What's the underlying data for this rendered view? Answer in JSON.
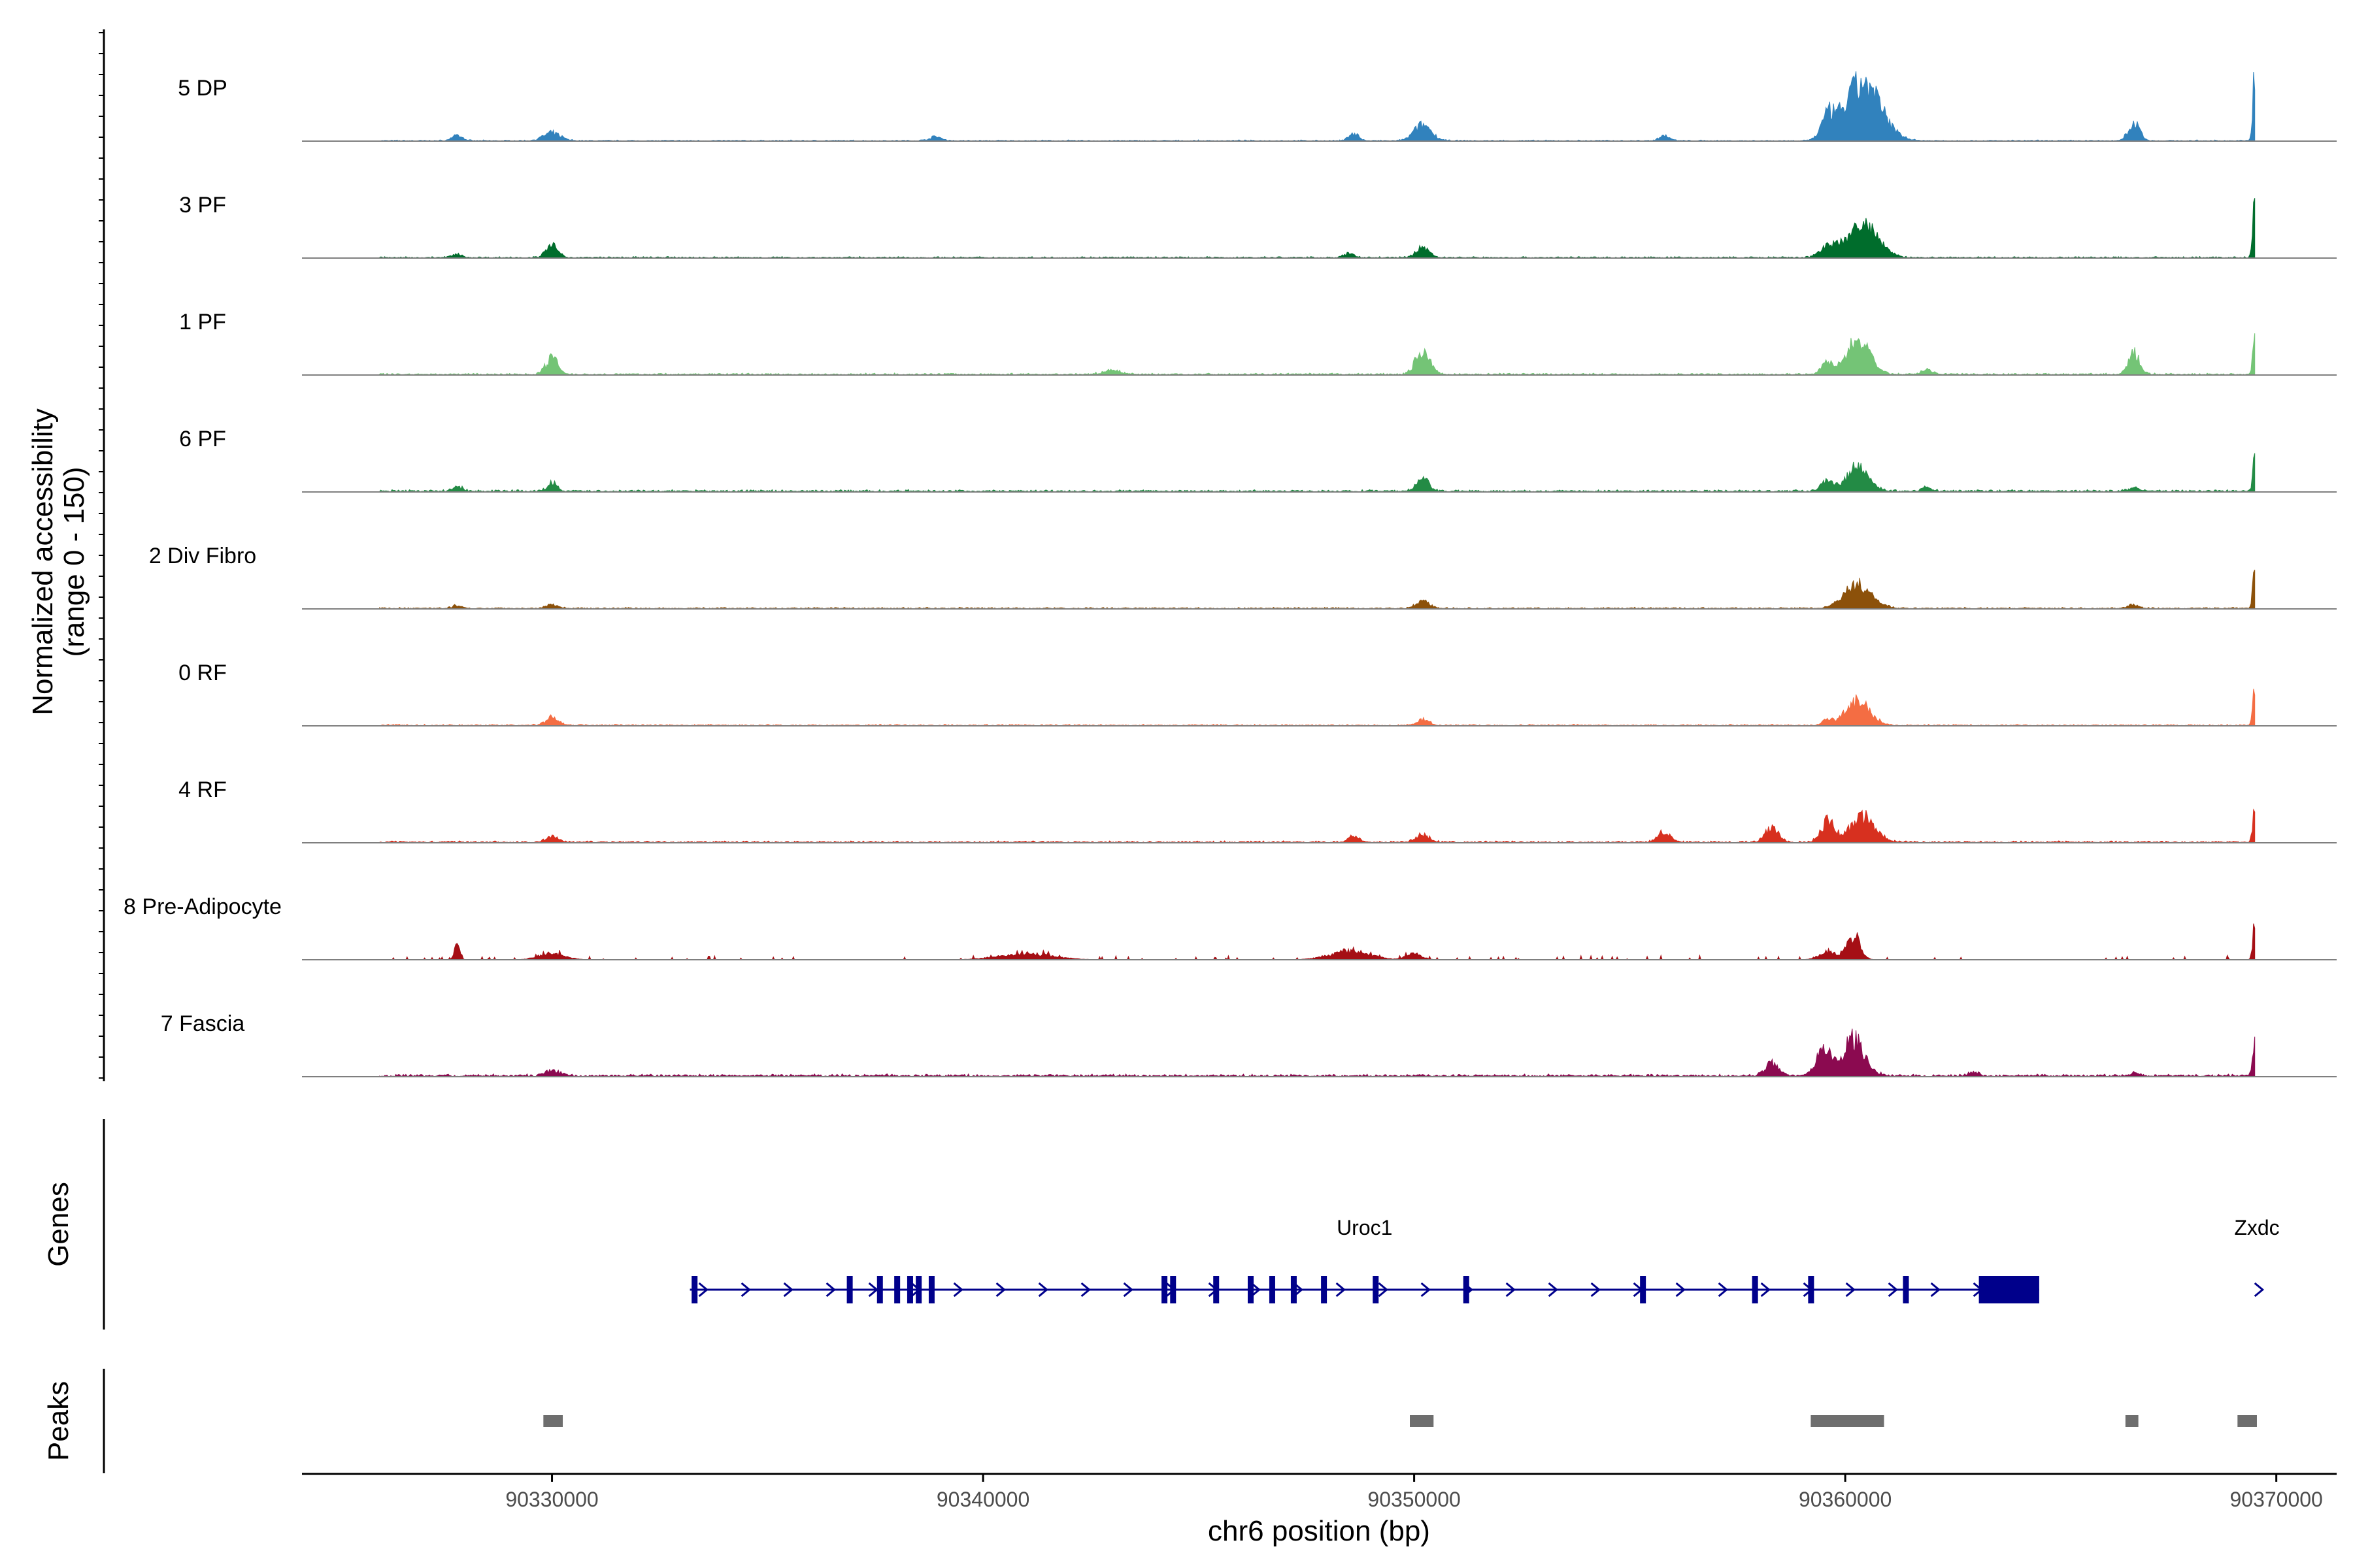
{
  "chart_data": {
    "type": "area",
    "title": "",
    "ylabel_line1": "Normalized accessibility",
    "ylabel_line2": "(range 0 - 150)",
    "y_range": [
      0,
      150
    ],
    "genes_label": "Genes",
    "peaks_label": "Peaks",
    "xlabel": "chr6 position (bp)",
    "xlim": [
      90324200,
      90371400
    ],
    "x_ticks": [
      90330000,
      90340000,
      90350000,
      90360000,
      90370000
    ],
    "x_tick_labels": [
      "90330000",
      "90340000",
      "90350000",
      "90360000",
      "90370000"
    ],
    "tracks": [
      {
        "name": "5 DP",
        "color": "#3182bd",
        "bg": 1.5,
        "peaks": [
          [
            90327800,
            8,
            120
          ],
          [
            90330000,
            12,
            200
          ],
          [
            90338900,
            6,
            150
          ],
          [
            90348600,
            12,
            110
          ],
          [
            90350200,
            25,
            200
          ],
          [
            90355800,
            8,
            120
          ],
          [
            90359600,
            30,
            150
          ],
          [
            90360400,
            90,
            420
          ],
          [
            90366700,
            28,
            130
          ],
          [
            90369500,
            110,
            45
          ]
        ]
      },
      {
        "name": "3 PF",
        "color": "#006d2c",
        "bg": 2.0,
        "peaks": [
          [
            90327800,
            5,
            120
          ],
          [
            90330000,
            20,
            130
          ],
          [
            90348500,
            6,
            120
          ],
          [
            90350200,
            16,
            150
          ],
          [
            90359600,
            16,
            180
          ],
          [
            90360400,
            52,
            350
          ],
          [
            90369500,
            95,
            45
          ]
        ]
      },
      {
        "name": "1 PF",
        "color": "#74c476",
        "bg": 2.5,
        "peaks": [
          [
            90330000,
            26,
            140
          ],
          [
            90343000,
            6,
            200
          ],
          [
            90350200,
            38,
            160
          ],
          [
            90359600,
            18,
            150
          ],
          [
            90360300,
            56,
            260
          ],
          [
            90361900,
            8,
            120
          ],
          [
            90366700,
            32,
            130
          ],
          [
            90369500,
            60,
            45
          ]
        ]
      },
      {
        "name": "6 PF",
        "color": "#238b45",
        "bg": 3.0,
        "peaks": [
          [
            90327800,
            7,
            120
          ],
          [
            90330000,
            12,
            120
          ],
          [
            90350200,
            20,
            140
          ],
          [
            90359600,
            18,
            150
          ],
          [
            90360300,
            40,
            250
          ],
          [
            90361900,
            6,
            120
          ],
          [
            90366700,
            6,
            120
          ],
          [
            90369500,
            58,
            45
          ]
        ]
      },
      {
        "name": "2 Div Fibro",
        "color": "#8c510a",
        "bg": 2.0,
        "peaks": [
          [
            90327800,
            4,
            120
          ],
          [
            90330000,
            6,
            150
          ],
          [
            90350200,
            12,
            150
          ],
          [
            90360300,
            36,
            320
          ],
          [
            90366700,
            6,
            120
          ],
          [
            90369500,
            70,
            45
          ]
        ]
      },
      {
        "name": "0 RF",
        "color": "#f46d43",
        "bg": 2.0,
        "peaks": [
          [
            90330000,
            12,
            150
          ],
          [
            90350200,
            9,
            140
          ],
          [
            90359600,
            8,
            120
          ],
          [
            90360300,
            38,
            280
          ],
          [
            90369500,
            60,
            45
          ]
        ]
      },
      {
        "name": "4 RF",
        "color": "#d7301f",
        "bg": 2.5,
        "peaks": [
          [
            90330000,
            8,
            150
          ],
          [
            90348600,
            10,
            120
          ],
          [
            90350200,
            12,
            150
          ],
          [
            90355800,
            16,
            150
          ],
          [
            90358300,
            24,
            150
          ],
          [
            90359600,
            32,
            160
          ],
          [
            90360400,
            40,
            280
          ],
          [
            90369500,
            55,
            45
          ]
        ]
      },
      {
        "name": "8 Pre-Adipocyte",
        "color": "#a50f15",
        "bg": 0.0,
        "peaks": [
          [
            90327800,
            26,
            60
          ],
          [
            90330000,
            10,
            300
          ],
          [
            90341000,
            10,
            600
          ],
          [
            90348500,
            14,
            450
          ],
          [
            90350000,
            10,
            180
          ],
          [
            90359600,
            14,
            200
          ],
          [
            90360200,
            38,
            150
          ],
          [
            90369500,
            55,
            45
          ]
        ]
      },
      {
        "name": "7 Fascia",
        "color": "#8b0a50",
        "bg": 3.5,
        "peaks": [
          [
            90330000,
            8,
            150
          ],
          [
            90358300,
            20,
            150
          ],
          [
            90359500,
            40,
            180
          ],
          [
            90360200,
            56,
            250
          ],
          [
            90363000,
            6,
            120
          ],
          [
            90366700,
            4,
            120
          ],
          [
            90369500,
            50,
            45
          ]
        ]
      }
    ],
    "genes": [
      {
        "name": "Uroc1",
        "start": 90333200,
        "end": 90364500,
        "strand": "+",
        "thick_start": 90363100,
        "thick_end": 90364500,
        "exons": [
          90333300,
          90336900,
          90337600,
          90338000,
          90338300,
          90338500,
          90338800,
          90344200,
          90344400,
          90345400,
          90346200,
          90346700,
          90347200,
          90347900,
          90349100,
          90351200,
          90355300,
          90357900,
          90359200,
          90361400
        ]
      },
      {
        "name": "Zxdc",
        "start": 90369500,
        "end": 90369600,
        "strand": "+",
        "thick_start": null,
        "thick_end": null,
        "exons": []
      }
    ],
    "peaks": [
      [
        90329800,
        90330250
      ],
      [
        90349900,
        90350450
      ],
      [
        90359200,
        90360900
      ],
      [
        90366500,
        90366800
      ],
      [
        90369100,
        90369550
      ]
    ]
  }
}
